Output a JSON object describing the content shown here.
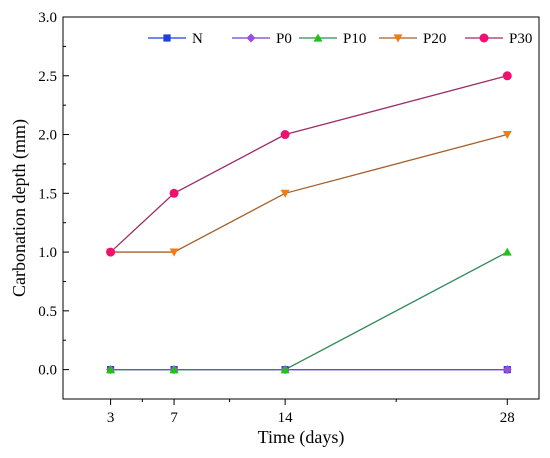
{
  "chart_data": {
    "type": "line",
    "title": "",
    "xlabel": "Time (days)",
    "ylabel": "Carbonation depth (mm)",
    "x": [
      3,
      7,
      14,
      28
    ],
    "x_ticks": [
      "3",
      "7",
      "14",
      "28"
    ],
    "xlim": [
      0,
      30
    ],
    "ylim": [
      -0.25,
      3.0
    ],
    "y_ticks": [
      "0.0",
      "0.5",
      "1.0",
      "1.5",
      "2.0",
      "2.5",
      "3.0"
    ],
    "legend_position": "top",
    "series": [
      {
        "name": "N",
        "color": "#1f3fd6",
        "line_color": "#1f3fd6",
        "marker": "square",
        "values": [
          0,
          0,
          0,
          0
        ]
      },
      {
        "name": "P0",
        "color": "#9d4dde",
        "line_color": "#7b3fd0",
        "marker": "diamond",
        "values": [
          0,
          0,
          0,
          0
        ]
      },
      {
        "name": "P10",
        "color": "#22c11a",
        "line_color": "#2f8a57",
        "marker": "triangle-up",
        "values": [
          0,
          0,
          0,
          1.0
        ]
      },
      {
        "name": "P20",
        "color": "#f07d14",
        "line_color": "#a5602a",
        "marker": "triangle-down",
        "values": [
          1.0,
          1.0,
          1.5,
          2.0
        ]
      },
      {
        "name": "P30",
        "color": "#f0106f",
        "line_color": "#9a2e6a",
        "marker": "circle",
        "values": [
          1.0,
          1.5,
          2.0,
          2.5
        ]
      }
    ]
  }
}
